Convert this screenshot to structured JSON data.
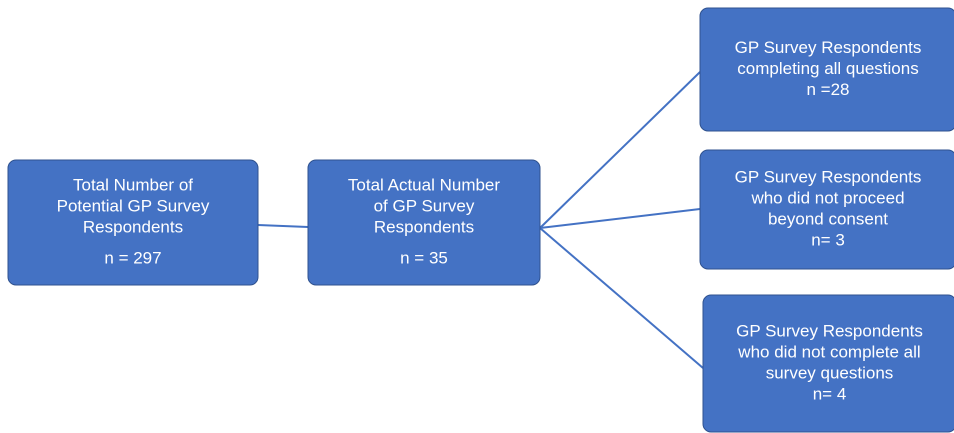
{
  "nodes": [
    {
      "lines": [
        "Total Number of",
        "Potential GP Survey",
        "Respondents"
      ],
      "count": "n = 297"
    },
    {
      "lines": [
        "Total Actual Number",
        "of  GP Survey",
        "Respondents"
      ],
      "count": "n = 35"
    },
    {
      "lines": [
        "GP Survey Respondents",
        "completing all questions"
      ],
      "count": "n =28"
    },
    {
      "lines": [
        "GP Survey Respondents",
        "who did not proceed",
        "beyond consent"
      ],
      "count": "n= 3"
    },
    {
      "lines": [
        "GP Survey Respondents",
        "who did not complete all",
        "survey questions"
      ],
      "count": "n= 4"
    }
  ]
}
